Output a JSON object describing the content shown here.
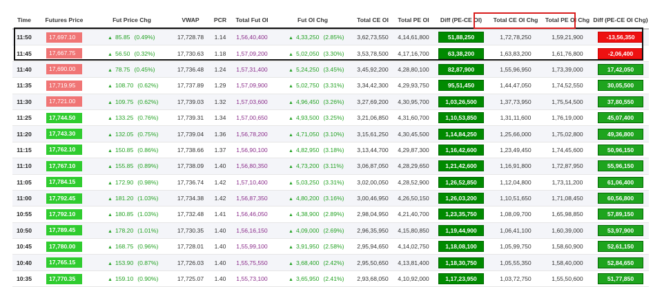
{
  "columns": [
    "Time",
    "Futures Price",
    "Fut Price Chg",
    "VWAP",
    "PCR",
    "Total Fut OI",
    "Fut OI Chg",
    "Total CE OI",
    "Total PE OI",
    "Diff (PE-CE OI)",
    "Total CE OI Chg",
    "Total PE OI Chg",
    "Diff (PE-CE OI Chg)"
  ],
  "colors": {
    "fut_price_red": "#f07575",
    "fut_price_green": "#2fcc2f",
    "diff_green": "#008a00",
    "diff2_green": "#1ea41e",
    "diff2_red": "#ee1111",
    "up_text": "#22a122",
    "fut_oi_text": "#8a2c8a",
    "highlight_rows_border": "#111111",
    "highlight_header_border": "#d81b1b"
  },
  "rows": [
    {
      "time": "11:50",
      "price": "17,697.10",
      "price_color": "red",
      "chg": "85.85",
      "chg_pct": "(0.49%)",
      "vwap": "17,728.78",
      "pcr": "1.14",
      "fut_oi": "1,56,40,400",
      "fut_oi_chg": "4,33,250",
      "fut_oi_pct": "(2.85%)",
      "ce_oi": "3,62,73,550",
      "pe_oi": "4,14,61,800",
      "diff": "51,88,250",
      "ce_chg": "1,72,78,250",
      "pe_chg": "1,59,21,900",
      "diff_chg": "-13,56,350",
      "diff_chg_color": "red"
    },
    {
      "time": "11:45",
      "price": "17,667.75",
      "price_color": "red",
      "chg": "56.50",
      "chg_pct": "(0.32%)",
      "vwap": "17,730.63",
      "pcr": "1.18",
      "fut_oi": "1,57,09,200",
      "fut_oi_chg": "5,02,050",
      "fut_oi_pct": "(3.30%)",
      "ce_oi": "3,53,78,500",
      "pe_oi": "4,17,16,700",
      "diff": "63,38,200",
      "ce_chg": "1,63,83,200",
      "pe_chg": "1,61,76,800",
      "diff_chg": "-2,06,400",
      "diff_chg_color": "red"
    },
    {
      "time": "11:40",
      "price": "17,690.00",
      "price_color": "red",
      "chg": "78.75",
      "chg_pct": "(0.45%)",
      "vwap": "17,736.48",
      "pcr": "1.24",
      "fut_oi": "1,57,31,400",
      "fut_oi_chg": "5,24,250",
      "fut_oi_pct": "(3.45%)",
      "ce_oi": "3,45,92,200",
      "pe_oi": "4,28,80,100",
      "diff": "82,87,900",
      "ce_chg": "1,55,96,950",
      "pe_chg": "1,73,39,000",
      "diff_chg": "17,42,050",
      "diff_chg_color": "green"
    },
    {
      "time": "11:35",
      "price": "17,719.95",
      "price_color": "red",
      "chg": "108.70",
      "chg_pct": "(0.62%)",
      "vwap": "17,737.89",
      "pcr": "1.29",
      "fut_oi": "1,57,09,900",
      "fut_oi_chg": "5,02,750",
      "fut_oi_pct": "(3.31%)",
      "ce_oi": "3,34,42,300",
      "pe_oi": "4,29,93,750",
      "diff": "95,51,450",
      "ce_chg": "1,44,47,050",
      "pe_chg": "1,74,52,550",
      "diff_chg": "30,05,500",
      "diff_chg_color": "green"
    },
    {
      "time": "11:30",
      "price": "17,721.00",
      "price_color": "red",
      "chg": "109.75",
      "chg_pct": "(0.62%)",
      "vwap": "17,739.03",
      "pcr": "1.32",
      "fut_oi": "1,57,03,600",
      "fut_oi_chg": "4,96,450",
      "fut_oi_pct": "(3.26%)",
      "ce_oi": "3,27,69,200",
      "pe_oi": "4,30,95,700",
      "diff": "1,03,26,500",
      "ce_chg": "1,37,73,950",
      "pe_chg": "1,75,54,500",
      "diff_chg": "37,80,550",
      "diff_chg_color": "green"
    },
    {
      "time": "11:25",
      "price": "17,744.50",
      "price_color": "green",
      "chg": "133.25",
      "chg_pct": "(0.76%)",
      "vwap": "17,739.31",
      "pcr": "1.34",
      "fut_oi": "1,57,00,650",
      "fut_oi_chg": "4,93,500",
      "fut_oi_pct": "(3.25%)",
      "ce_oi": "3,21,06,850",
      "pe_oi": "4,31,60,700",
      "diff": "1,10,53,850",
      "ce_chg": "1,31,11,600",
      "pe_chg": "1,76,19,000",
      "diff_chg": "45,07,400",
      "diff_chg_color": "green"
    },
    {
      "time": "11:20",
      "price": "17,743.30",
      "price_color": "green",
      "chg": "132.05",
      "chg_pct": "(0.75%)",
      "vwap": "17,739.04",
      "pcr": "1.36",
      "fut_oi": "1,56,78,200",
      "fut_oi_chg": "4,71,050",
      "fut_oi_pct": "(3.10%)",
      "ce_oi": "3,15,61,250",
      "pe_oi": "4,30,45,500",
      "diff": "1,14,84,250",
      "ce_chg": "1,25,66,000",
      "pe_chg": "1,75,02,800",
      "diff_chg": "49,36,800",
      "diff_chg_color": "green"
    },
    {
      "time": "11:15",
      "price": "17,762.10",
      "price_color": "green",
      "chg": "150.85",
      "chg_pct": "(0.86%)",
      "vwap": "17,738.66",
      "pcr": "1.37",
      "fut_oi": "1,56,90,100",
      "fut_oi_chg": "4,82,950",
      "fut_oi_pct": "(3.18%)",
      "ce_oi": "3,13,44,700",
      "pe_oi": "4,29,87,300",
      "diff": "1,16,42,600",
      "ce_chg": "1,23,49,450",
      "pe_chg": "1,74,45,600",
      "diff_chg": "50,96,150",
      "diff_chg_color": "green"
    },
    {
      "time": "11:10",
      "price": "17,767.10",
      "price_color": "green",
      "chg": "155.85",
      "chg_pct": "(0.89%)",
      "vwap": "17,738.09",
      "pcr": "1.40",
      "fut_oi": "1,56,80,350",
      "fut_oi_chg": "4,73,200",
      "fut_oi_pct": "(3.11%)",
      "ce_oi": "3,06,87,050",
      "pe_oi": "4,28,29,650",
      "diff": "1,21,42,600",
      "ce_chg": "1,16,91,800",
      "pe_chg": "1,72,87,950",
      "diff_chg": "55,96,150",
      "diff_chg_color": "green"
    },
    {
      "time": "11:05",
      "price": "17,784.15",
      "price_color": "green",
      "chg": "172.90",
      "chg_pct": "(0.98%)",
      "vwap": "17,736.74",
      "pcr": "1.42",
      "fut_oi": "1,57,10,400",
      "fut_oi_chg": "5,03,250",
      "fut_oi_pct": "(3.31%)",
      "ce_oi": "3,02,00,050",
      "pe_oi": "4,28,52,900",
      "diff": "1,26,52,850",
      "ce_chg": "1,12,04,800",
      "pe_chg": "1,73,11,200",
      "diff_chg": "61,06,400",
      "diff_chg_color": "green"
    },
    {
      "time": "11:00",
      "price": "17,792.45",
      "price_color": "green",
      "chg": "181.20",
      "chg_pct": "(1.03%)",
      "vwap": "17,734.38",
      "pcr": "1.42",
      "fut_oi": "1,56,87,350",
      "fut_oi_chg": "4,80,200",
      "fut_oi_pct": "(3.16%)",
      "ce_oi": "3,00,46,950",
      "pe_oi": "4,26,50,150",
      "diff": "1,26,03,200",
      "ce_chg": "1,10,51,650",
      "pe_chg": "1,71,08,450",
      "diff_chg": "60,56,800",
      "diff_chg_color": "green"
    },
    {
      "time": "10:55",
      "price": "17,792.10",
      "price_color": "green",
      "chg": "180.85",
      "chg_pct": "(1.03%)",
      "vwap": "17,732.48",
      "pcr": "1.41",
      "fut_oi": "1,56,46,050",
      "fut_oi_chg": "4,38,900",
      "fut_oi_pct": "(2.89%)",
      "ce_oi": "2,98,04,950",
      "pe_oi": "4,21,40,700",
      "diff": "1,23,35,750",
      "ce_chg": "1,08,09,700",
      "pe_chg": "1,65,98,850",
      "diff_chg": "57,89,150",
      "diff_chg_color": "green"
    },
    {
      "time": "10:50",
      "price": "17,789.45",
      "price_color": "green",
      "chg": "178.20",
      "chg_pct": "(1.01%)",
      "vwap": "17,730.35",
      "pcr": "1.40",
      "fut_oi": "1,56,16,150",
      "fut_oi_chg": "4,09,000",
      "fut_oi_pct": "(2.69%)",
      "ce_oi": "2,96,35,950",
      "pe_oi": "4,15,80,850",
      "diff": "1,19,44,900",
      "ce_chg": "1,06,41,100",
      "pe_chg": "1,60,39,000",
      "diff_chg": "53,97,900",
      "diff_chg_color": "green"
    },
    {
      "time": "10:45",
      "price": "17,780.00",
      "price_color": "green",
      "chg": "168.75",
      "chg_pct": "(0.96%)",
      "vwap": "17,728.01",
      "pcr": "1.40",
      "fut_oi": "1,55,99,100",
      "fut_oi_chg": "3,91,950",
      "fut_oi_pct": "(2.58%)",
      "ce_oi": "2,95,94,650",
      "pe_oi": "4,14,02,750",
      "diff": "1,18,08,100",
      "ce_chg": "1,05,99,750",
      "pe_chg": "1,58,60,900",
      "diff_chg": "52,61,150",
      "diff_chg_color": "green"
    },
    {
      "time": "10:40",
      "price": "17,765.15",
      "price_color": "green",
      "chg": "153.90",
      "chg_pct": "(0.87%)",
      "vwap": "17,726.03",
      "pcr": "1.40",
      "fut_oi": "1,55,75,550",
      "fut_oi_chg": "3,68,400",
      "fut_oi_pct": "(2.42%)",
      "ce_oi": "2,95,50,650",
      "pe_oi": "4,13,81,400",
      "diff": "1,18,30,750",
      "ce_chg": "1,05,55,350",
      "pe_chg": "1,58,40,000",
      "diff_chg": "52,84,650",
      "diff_chg_color": "green"
    },
    {
      "time": "10:35",
      "price": "17,770.35",
      "price_color": "green",
      "chg": "159.10",
      "chg_pct": "(0.90%)",
      "vwap": "17,725.07",
      "pcr": "1.40",
      "fut_oi": "1,55,73,100",
      "fut_oi_chg": "3,65,950",
      "fut_oi_pct": "(2.41%)",
      "ce_oi": "2,93,68,050",
      "pe_oi": "4,10,92,000",
      "diff": "1,17,23,950",
      "ce_chg": "1,03,72,750",
      "pe_chg": "1,55,50,600",
      "diff_chg": "51,77,850",
      "diff_chg_color": "green"
    }
  ]
}
